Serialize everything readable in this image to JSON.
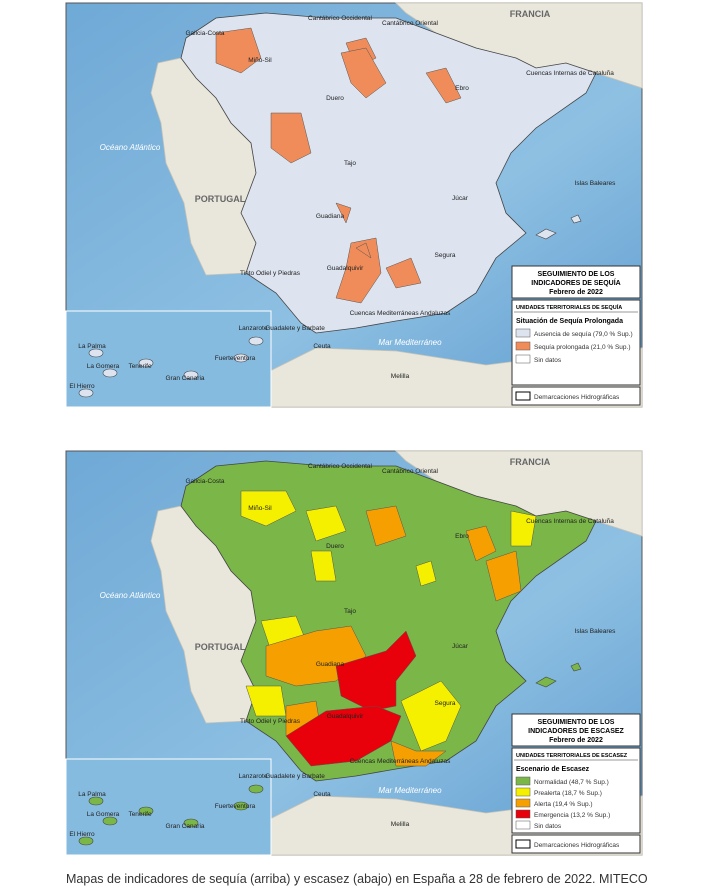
{
  "place_labels": [
    "FRANCIA",
    "Cantábrico Occidental",
    "Cantábrico Oriental",
    "Galicia-Costa",
    "Miño-Sil",
    "Duero",
    "Ebro",
    "Cuencas Internas de Cataluña",
    "Océano Atlántico",
    "PORTUGAL",
    "Tajo",
    "Guadiana",
    "Júcar",
    "Segura",
    "Islas Baleares",
    "Tinto Odiel y Piedras",
    "Guadalquivir",
    "Guadalete y Barbate",
    "Ceuta",
    "Melilla",
    "Cuencas Mediterráneas Andaluzas",
    "Mar Mediterráneo",
    "La Palma",
    "Lanzarote",
    "Tenerife",
    "La Gomera",
    "Gran Canaria",
    "Fuerteventura",
    "El Hierro"
  ],
  "maps": [
    {
      "title_lines": [
        "SEGUIMIENTO DE LOS",
        "INDICADORES DE SEQUÍA",
        "Febrero de 2022"
      ],
      "subtitle": "UNIDADES TERRITORIALES DE SEQUÍA",
      "heading": "Situación de Sequía Prolongada",
      "items": [
        {
          "label": "Ausencia de sequía (79,0 % Sup.)",
          "color": "#dde4f0"
        },
        {
          "label": "Sequía prolongada (21,0 % Sup.)",
          "color": "#f08c5a"
        },
        {
          "label": "Sin datos",
          "color": "#ffffff"
        }
      ],
      "footer": "Demarcaciones Hidrográficas"
    },
    {
      "title_lines": [
        "SEGUIMIENTO DE LOS",
        "INDICADORES DE ESCASEZ",
        "Febrero de 2022"
      ],
      "subtitle": "UNIDADES TERRITORIALES DE ESCASEZ",
      "heading": "Escenario de Escasez",
      "items": [
        {
          "label": "Normalidad (48,7 % Sup.)",
          "color": "#7ab648"
        },
        {
          "label": "Prealerta (18,7 % Sup.)",
          "color": "#f5f000"
        },
        {
          "label": "Alerta (19,4 % Sup.)",
          "color": "#f5a000"
        },
        {
          "label": "Emergencia (13,2 % Sup.)",
          "color": "#e8000a"
        },
        {
          "label": "Sin datos",
          "color": "#ffffff"
        }
      ],
      "footer": "Demarcaciones Hidrográficas"
    }
  ],
  "caption": "Mapas de indicadores de sequía (arriba) y escasez (abajo) en España a 28 de febrero de 2022. MITECO"
}
